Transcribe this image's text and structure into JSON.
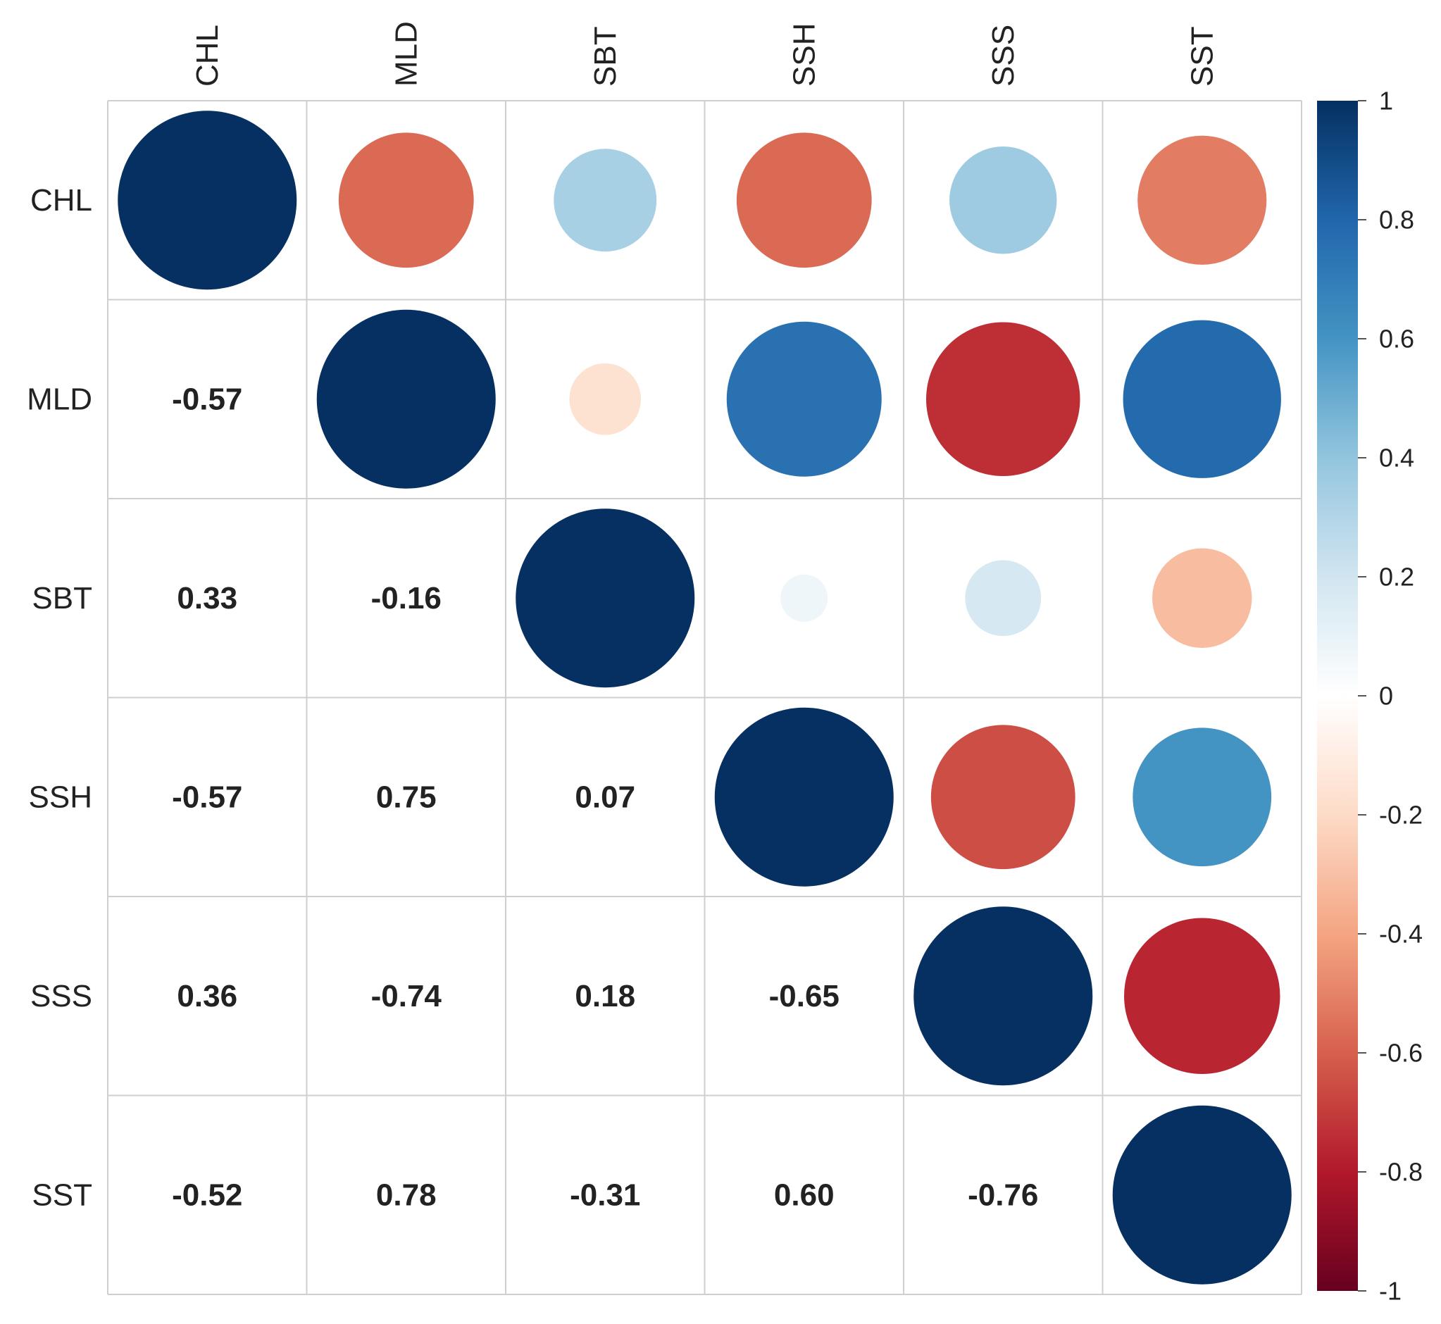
{
  "chart_data": {
    "type": "heatmap",
    "subtype": "correlation-matrix",
    "title": "",
    "variables": [
      "CHL",
      "MLD",
      "SBT",
      "SSH",
      "SSS",
      "SST"
    ],
    "matrix": [
      [
        1.0,
        -0.57,
        0.33,
        -0.57,
        0.36,
        -0.52
      ],
      [
        -0.57,
        1.0,
        -0.16,
        0.75,
        -0.74,
        0.78
      ],
      [
        0.33,
        -0.16,
        1.0,
        0.07,
        0.18,
        -0.31
      ],
      [
        -0.57,
        0.75,
        0.07,
        1.0,
        -0.65,
        0.6
      ],
      [
        0.36,
        -0.74,
        0.18,
        -0.65,
        1.0,
        -0.76
      ],
      [
        -0.52,
        0.78,
        -0.31,
        0.6,
        -0.76,
        1.0
      ]
    ],
    "upper_triangle": "circle",
    "lower_triangle": "number",
    "value_labels": {
      "MLD": {
        "CHL": "-0.57"
      },
      "SBT": {
        "CHL": "0.33",
        "MLD": "-0.16"
      },
      "SSH": {
        "CHL": "-0.57",
        "MLD": "0.75",
        "SBT": "0.07"
      },
      "SSS": {
        "CHL": "0.36",
        "MLD": "-0.74",
        "SBT": "0.18",
        "SSH": "-0.65"
      },
      "SST": {
        "CHL": "-0.52",
        "MLD": "0.78",
        "SBT": "-0.31",
        "SSH": "0.60",
        "SSS": "-0.76"
      }
    },
    "colorbar": {
      "range": [
        -1,
        1
      ],
      "ticks": [
        "1",
        "0.8",
        "0.6",
        "0.4",
        "0.2",
        "0",
        "-0.2",
        "-0.4",
        "-0.6",
        "-0.8",
        "-1"
      ],
      "tick_values": [
        1,
        0.8,
        0.6,
        0.4,
        0.2,
        0,
        -0.2,
        -0.4,
        -0.6,
        -0.8,
        -1
      ],
      "placement": "right"
    },
    "colors": {
      "negative_end": "#67001f",
      "neutral": "#ffffff",
      "positive_end": "#053061",
      "grid": "#cfcfcf",
      "text": "#222222"
    }
  }
}
